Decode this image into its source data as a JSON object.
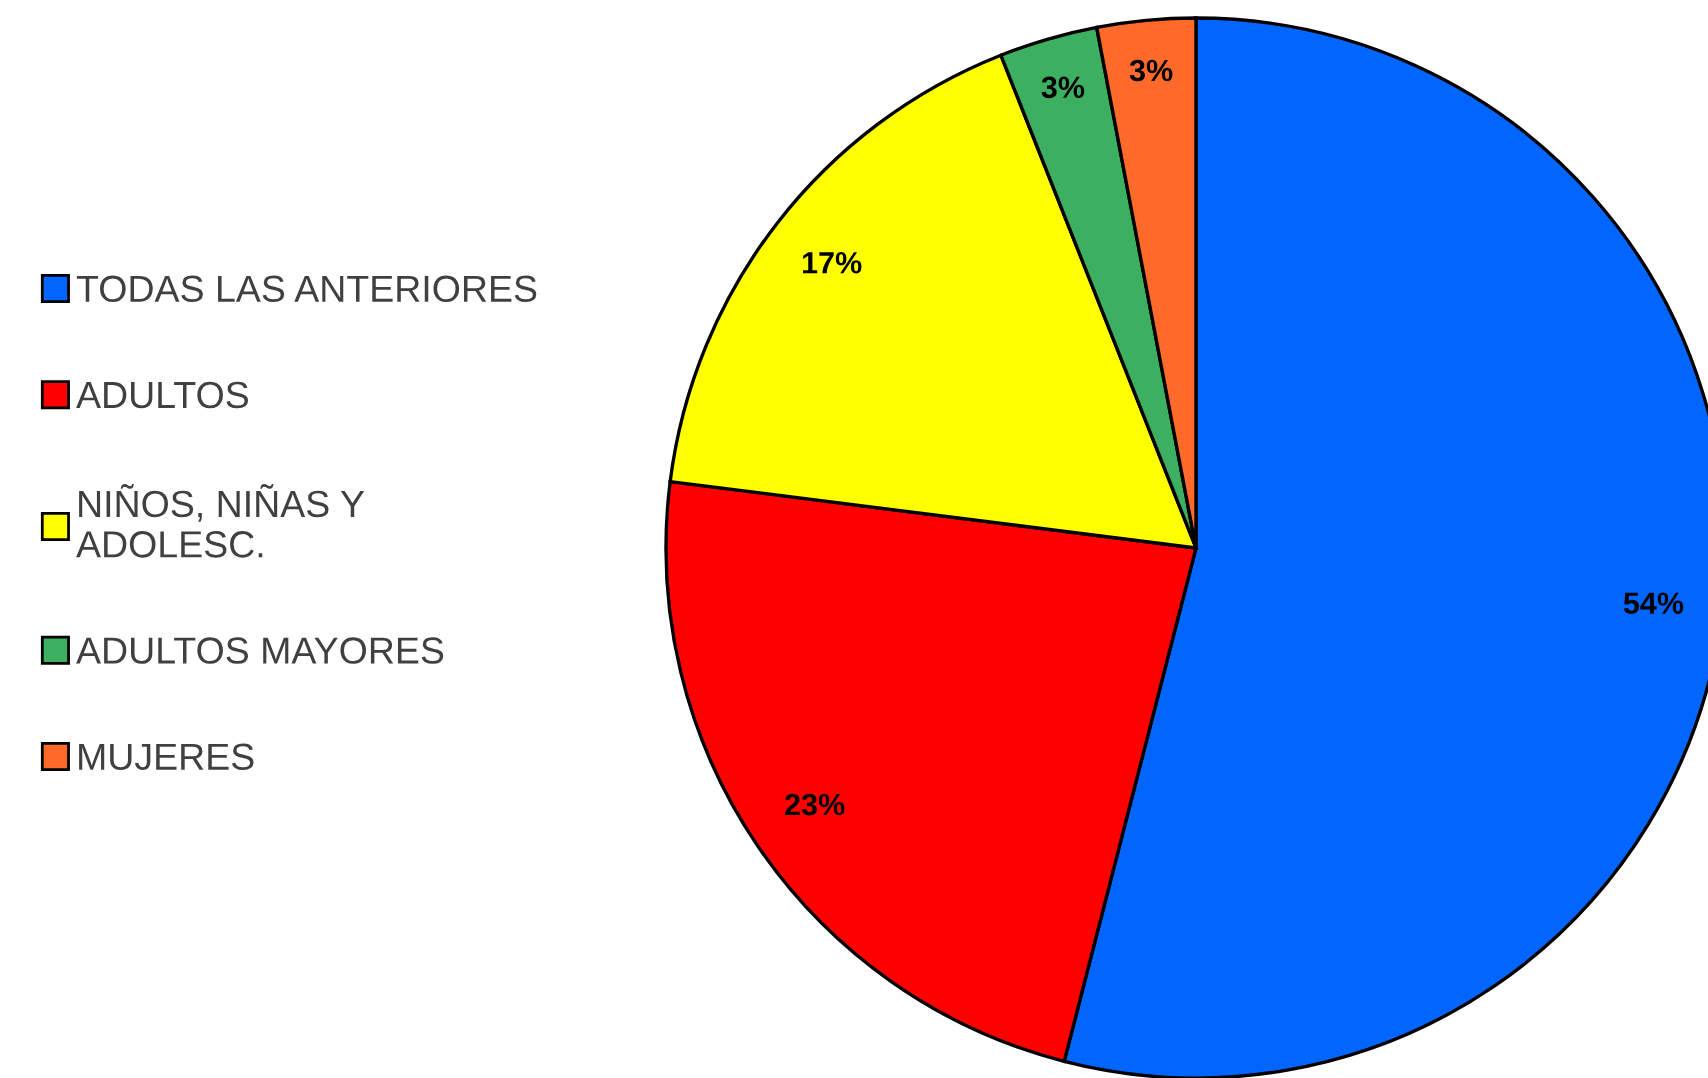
{
  "chart_data": {
    "type": "pie",
    "categories": [
      "TODAS LAS ANTERIORES",
      "ADULTOS",
      "NIÑOS, NIÑAS Y\nADOLESC.",
      "ADULTOS MAYORES",
      "MUJERES"
    ],
    "values": [
      54,
      23,
      17,
      3,
      3
    ],
    "value_labels": [
      "54%",
      "23%",
      "17%",
      "3%",
      "3%"
    ],
    "colors": [
      "#0066ff",
      "#ff0000",
      "#ffff00",
      "#3cb060",
      "#ff6a2a"
    ],
    "legend": "left"
  }
}
